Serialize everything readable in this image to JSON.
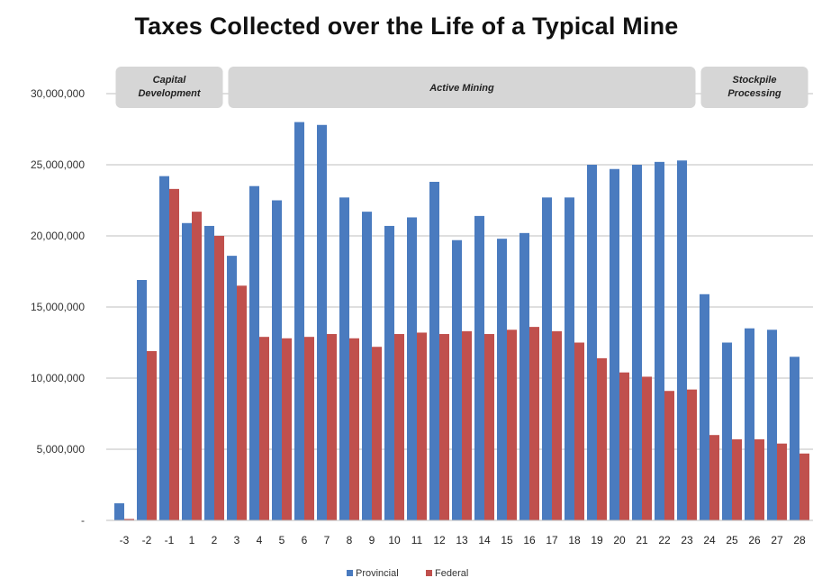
{
  "chart_data": {
    "type": "bar",
    "title": "Taxes Collected over the Life of a Typical Mine",
    "xlabel": "",
    "ylabel": "",
    "ylim": [
      0,
      30000000
    ],
    "yticks": [
      {
        "value": 0,
        "label": "-"
      },
      {
        "value": 5000000,
        "label": "5,000,000"
      },
      {
        "value": 10000000,
        "label": "10,000,000"
      },
      {
        "value": 15000000,
        "label": "15,000,000"
      },
      {
        "value": 20000000,
        "label": "20,000,000"
      },
      {
        "value": 25000000,
        "label": "25,000,000"
      },
      {
        "value": 30000000,
        "label": "30,000,000"
      }
    ],
    "grid": true,
    "legend_position": "bottom",
    "categories": [
      "-3",
      "-2",
      "-1",
      "1",
      "2",
      "3",
      "4",
      "5",
      "6",
      "7",
      "8",
      "9",
      "10",
      "11",
      "12",
      "13",
      "14",
      "15",
      "16",
      "17",
      "18",
      "19",
      "20",
      "21",
      "22",
      "23",
      "24",
      "25",
      "26",
      "27",
      "28"
    ],
    "series": [
      {
        "name": "Provincial",
        "color": "#4a7bbf",
        "values": [
          1200000,
          16900000,
          24200000,
          20900000,
          20700000,
          18600000,
          23500000,
          22500000,
          28000000,
          27800000,
          22700000,
          21700000,
          20700000,
          21300000,
          23800000,
          19700000,
          21400000,
          19800000,
          20200000,
          22700000,
          22700000,
          25000000,
          24700000,
          25000000,
          25200000,
          25300000,
          15900000,
          12500000,
          13500000,
          13400000,
          11500000
        ]
      },
      {
        "name": "Federal",
        "color": "#c0504d",
        "values": [
          100000,
          11900000,
          23300000,
          21700000,
          20000000,
          16500000,
          12900000,
          12800000,
          12900000,
          13100000,
          12800000,
          12200000,
          13100000,
          13200000,
          13100000,
          13300000,
          13100000,
          13400000,
          13600000,
          13300000,
          12500000,
          11400000,
          10400000,
          10100000,
          9100000,
          9200000,
          6000000,
          5700000,
          5700000,
          5400000,
          4700000
        ]
      }
    ],
    "phases": [
      {
        "label": "Capital Development",
        "from": "-3",
        "to": "2"
      },
      {
        "label": "Active Mining",
        "from": "3",
        "to": "23"
      },
      {
        "label": "Stockpile Processing",
        "from": "24",
        "to": "28"
      }
    ]
  }
}
